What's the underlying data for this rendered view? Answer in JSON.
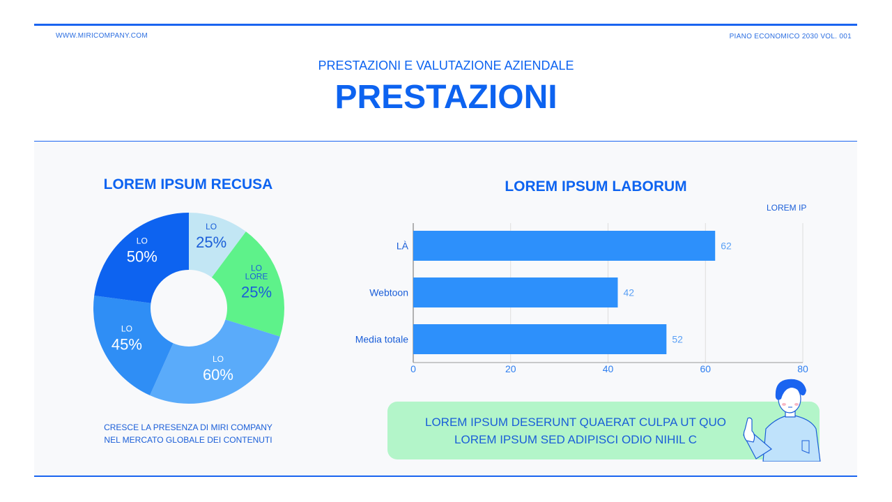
{
  "header": {
    "website": "WWW.MIRICOMPANY.COM",
    "doc_label": "PIANO ECONOMICO 2030 VOL. 001",
    "subtitle": "PRESTAZIONI E VALUTAZIONE AZIENDALE",
    "title": "PRESTAZIONI"
  },
  "colors": {
    "accent": "#0d63f0",
    "green": "#5ef28a",
    "note_bg": "#b3f5c9",
    "bar": "#2d90fb"
  },
  "chart_data": [
    {
      "type": "pie",
      "donut": true,
      "title": "LOREM IPSUM RECUSA",
      "slices": [
        {
          "label": "LO",
          "value_label": "25%",
          "share": 10.2,
          "color": "#c2e6f4",
          "text_color": "#1a5ed8"
        },
        {
          "label": "LO LORE",
          "value_label": "25%",
          "share": 19.6,
          "color": "#5ef28a",
          "text_color": "#1a5ed8"
        },
        {
          "label": "LO",
          "value_label": "60%",
          "share": 26.9,
          "color": "#5aabfa",
          "text_color": "#ffffff"
        },
        {
          "label": "LO",
          "value_label": "45%",
          "share": 20.4,
          "color": "#2f8ef5",
          "text_color": "#ffffff"
        },
        {
          "label": "LO",
          "value_label": "50%",
          "share": 22.9,
          "color": "#0d63f0",
          "text_color": "#ffffff"
        }
      ],
      "caption": [
        "CRESCE LA PRESENZA DI MIRI COMPANY",
        "NEL MERCATO GLOBALE DEI CONTENUTI"
      ]
    },
    {
      "type": "bar",
      "orientation": "horizontal",
      "title": "LOREM IPSUM LABORUM",
      "legend": "LOREM IP",
      "categories": [
        "LÀ",
        "Webtoon",
        "Media totale"
      ],
      "values": [
        62,
        42,
        52
      ],
      "xlim": [
        0,
        80
      ],
      "xticks": [
        0,
        20,
        40,
        60,
        80
      ],
      "grid": true
    }
  ],
  "note": {
    "line1": "LOREM IPSUM DESERUNT QUAERAT CULPA UT QUO",
    "line2": "LOREM IPSUM SED ADIPISCI ODIO NIHIL C"
  }
}
